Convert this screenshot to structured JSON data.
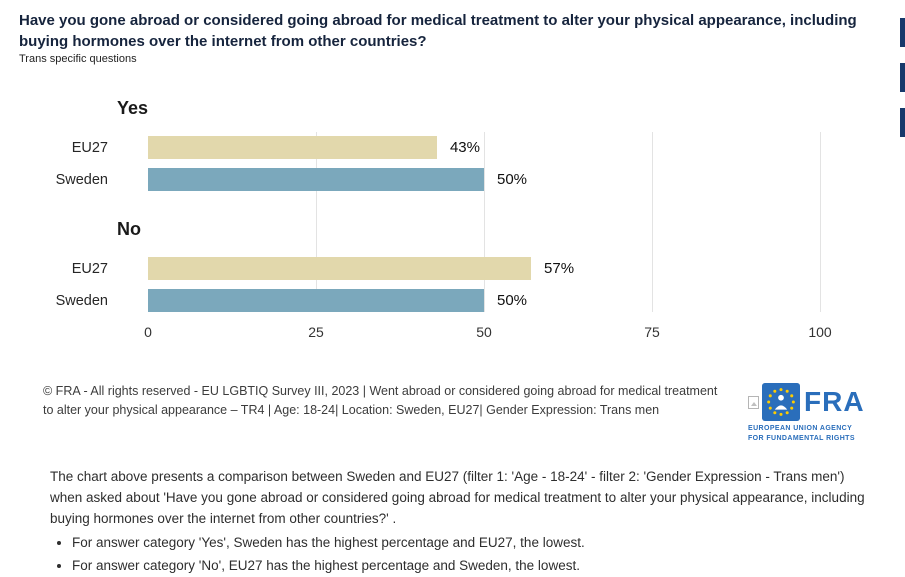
{
  "header": {
    "title": "Have you gone abroad or considered going abroad for medical treatment to alter your physical appearance, including buying hormones over the internet from other countries?",
    "subtitle": "Trans specific questions"
  },
  "colors": {
    "title_text": "#16243d",
    "edge_button": "#17396b",
    "bar_eu27": "#e2d8ac",
    "bar_sweden": "#7ba8bc",
    "logo_blue": "#2a6ebb",
    "star_yellow": "#ffcc00"
  },
  "chart_data": {
    "type": "bar",
    "orientation": "horizontal",
    "unit": "%",
    "xlim": [
      0,
      100
    ],
    "xticks": [
      0,
      25,
      50,
      75,
      100
    ],
    "grid": true,
    "categories": [
      "EU27",
      "Sweden"
    ],
    "series_colors": {
      "EU27": "#e2d8ac",
      "Sweden": "#7ba8bc"
    },
    "groups": [
      {
        "label": "Yes",
        "bars": [
          {
            "category": "EU27",
            "value": 43,
            "label": "43%"
          },
          {
            "category": "Sweden",
            "value": 50,
            "label": "50%"
          }
        ]
      },
      {
        "label": "No",
        "bars": [
          {
            "category": "EU27",
            "value": 57,
            "label": "57%"
          },
          {
            "category": "Sweden",
            "value": 50,
            "label": "50%"
          }
        ]
      }
    ]
  },
  "footer": {
    "credit": "© FRA - All rights reserved - EU LGBTIQ Survey III, 2023 | Went abroad or considered going abroad for medical treatment to alter your physical appearance – TR4 | Age: 18-24| Location: Sweden, EU27| Gender Expression: Trans men",
    "logo": {
      "acronym": "FRA",
      "tagline_line1": "EUROPEAN UNION AGENCY",
      "tagline_line2": "FOR FUNDAMENTAL RIGHTS"
    }
  },
  "description": {
    "intro": "The chart above presents a comparison between Sweden and EU27 (filter 1: 'Age - 18-24' - filter 2: 'Gender Expression - Trans men') when asked about 'Have you gone abroad or considered going abroad for medical treatment to alter your physical appearance, including buying hormones over the internet from other countries?' .",
    "bullets": [
      "For answer category 'Yes', Sweden has the highest percentage and EU27, the lowest.",
      "For answer category 'No', EU27 has the highest percentage and Sweden, the lowest."
    ]
  }
}
